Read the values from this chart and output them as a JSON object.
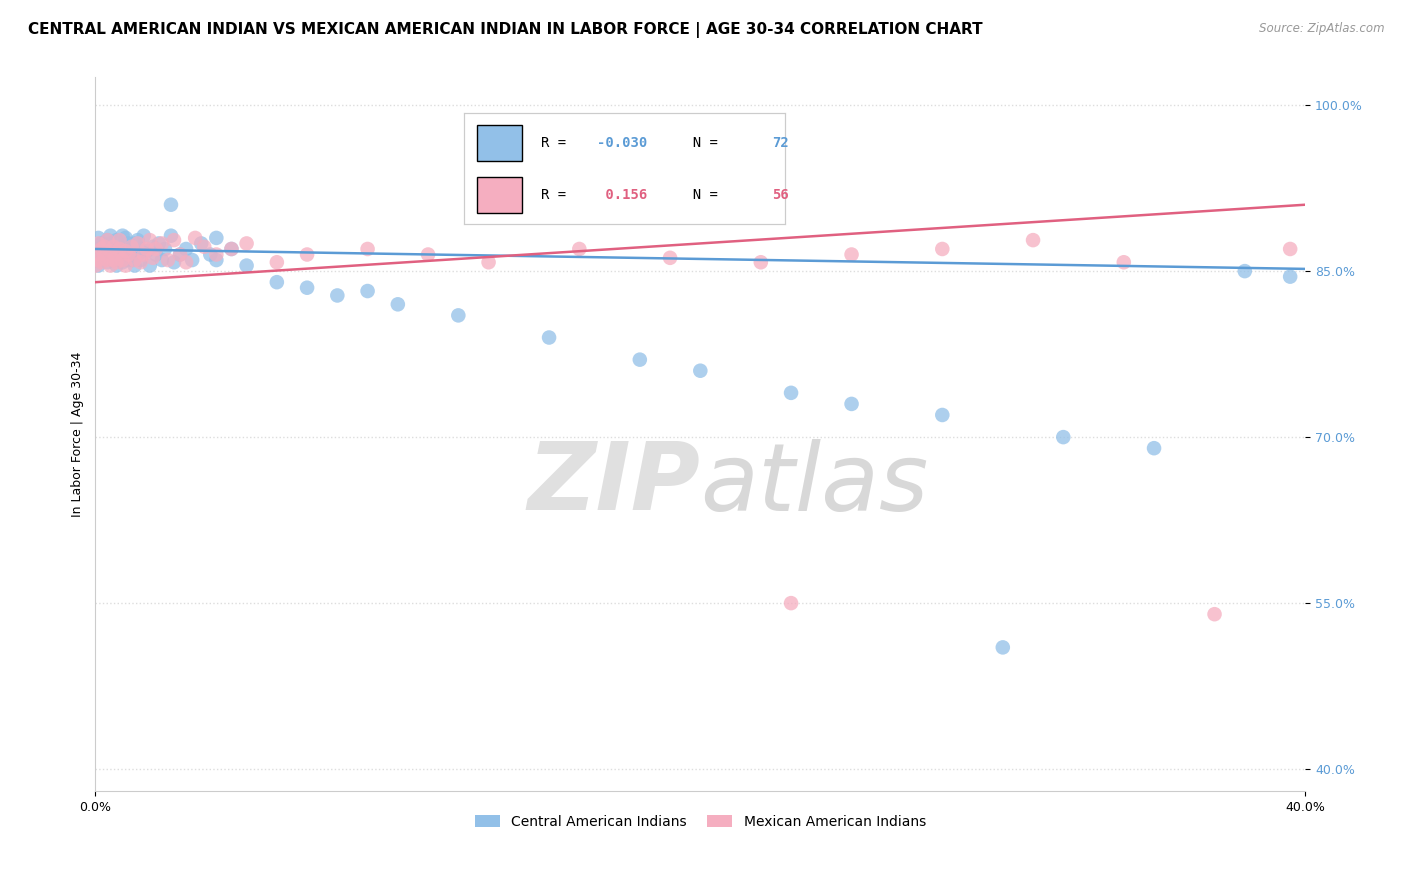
{
  "title": "CENTRAL AMERICAN INDIAN VS MEXICAN AMERICAN INDIAN IN LABOR FORCE | AGE 30-34 CORRELATION CHART",
  "source": "Source: ZipAtlas.com",
  "ylabel": "In Labor Force | Age 30-34",
  "xlim": [
    0.0,
    0.4
  ],
  "ylim": [
    0.38,
    1.025
  ],
  "yticks": [
    0.4,
    0.55,
    0.7,
    0.85,
    1.0
  ],
  "ytick_labels": [
    "40.0%",
    "55.0%",
    "70.0%",
    "85.0%",
    "100.0%"
  ],
  "xticks": [
    0.0,
    0.4
  ],
  "xtick_labels": [
    "0.0%",
    "40.0%"
  ],
  "blue_R": -0.03,
  "blue_N": 72,
  "pink_R": 0.156,
  "pink_N": 56,
  "blue_color": "#92c0e8",
  "pink_color": "#f5aec0",
  "blue_line_color": "#5b9bd5",
  "pink_line_color": "#e06080",
  "legend_blue": "Central American Indians",
  "legend_pink": "Mexican American Indians",
  "blue_scatter_x": [
    0.0,
    0.0,
    0.001,
    0.001,
    0.002,
    0.002,
    0.003,
    0.003,
    0.004,
    0.004,
    0.005,
    0.005,
    0.005,
    0.006,
    0.006,
    0.007,
    0.007,
    0.007,
    0.008,
    0.008,
    0.009,
    0.009,
    0.01,
    0.01,
    0.01,
    0.011,
    0.011,
    0.012,
    0.012,
    0.013,
    0.013,
    0.014,
    0.014,
    0.015,
    0.015,
    0.016,
    0.017,
    0.018,
    0.019,
    0.02,
    0.021,
    0.022,
    0.023,
    0.025,
    0.026,
    0.028,
    0.03,
    0.032,
    0.035,
    0.038,
    0.04,
    0.045,
    0.05,
    0.06,
    0.07,
    0.08,
    0.09,
    0.1,
    0.12,
    0.15,
    0.18,
    0.2,
    0.23,
    0.25,
    0.28,
    0.3,
    0.32,
    0.35,
    0.38,
    0.395,
    0.025,
    0.04
  ],
  "blue_scatter_y": [
    0.87,
    0.86,
    0.88,
    0.855,
    0.875,
    0.862,
    0.868,
    0.872,
    0.878,
    0.858,
    0.865,
    0.875,
    0.882,
    0.86,
    0.87,
    0.855,
    0.865,
    0.878,
    0.86,
    0.87,
    0.882,
    0.858,
    0.86,
    0.87,
    0.88,
    0.865,
    0.875,
    0.86,
    0.87,
    0.855,
    0.875,
    0.865,
    0.878,
    0.86,
    0.87,
    0.882,
    0.868,
    0.855,
    0.872,
    0.865,
    0.875,
    0.86,
    0.87,
    0.882,
    0.858,
    0.865,
    0.87,
    0.86,
    0.875,
    0.865,
    0.86,
    0.87,
    0.855,
    0.84,
    0.835,
    0.828,
    0.832,
    0.82,
    0.81,
    0.79,
    0.77,
    0.76,
    0.74,
    0.73,
    0.72,
    0.51,
    0.7,
    0.69,
    0.85,
    0.845,
    0.91,
    0.88
  ],
  "pink_scatter_x": [
    0.0,
    0.0,
    0.001,
    0.001,
    0.002,
    0.002,
    0.003,
    0.003,
    0.004,
    0.004,
    0.005,
    0.005,
    0.006,
    0.006,
    0.007,
    0.007,
    0.008,
    0.008,
    0.009,
    0.01,
    0.01,
    0.011,
    0.012,
    0.013,
    0.014,
    0.015,
    0.016,
    0.017,
    0.018,
    0.019,
    0.02,
    0.022,
    0.024,
    0.026,
    0.028,
    0.03,
    0.033,
    0.036,
    0.04,
    0.045,
    0.05,
    0.06,
    0.07,
    0.09,
    0.11,
    0.13,
    0.16,
    0.19,
    0.22,
    0.25,
    0.28,
    0.31,
    0.34,
    0.37,
    0.395,
    0.23
  ],
  "pink_scatter_y": [
    0.865,
    0.855,
    0.875,
    0.86,
    0.87,
    0.858,
    0.865,
    0.872,
    0.86,
    0.878,
    0.855,
    0.868,
    0.86,
    0.872,
    0.858,
    0.865,
    0.87,
    0.878,
    0.86,
    0.855,
    0.868,
    0.865,
    0.872,
    0.86,
    0.875,
    0.858,
    0.865,
    0.87,
    0.878,
    0.862,
    0.87,
    0.875,
    0.86,
    0.878,
    0.865,
    0.858,
    0.88,
    0.872,
    0.865,
    0.87,
    0.875,
    0.858,
    0.865,
    0.87,
    0.865,
    0.858,
    0.87,
    0.862,
    0.858,
    0.865,
    0.87,
    0.878,
    0.858,
    0.54,
    0.87,
    0.55
  ],
  "blue_line_x0": 0.0,
  "blue_line_x1": 0.4,
  "blue_line_y0": 0.87,
  "blue_line_y1": 0.852,
  "pink_line_x0": 0.0,
  "pink_line_x1": 0.4,
  "pink_line_y0": 0.84,
  "pink_line_y1": 0.91,
  "watermark_zip": "ZIP",
  "watermark_atlas": "atlas",
  "background_color": "#ffffff",
  "grid_color": "#dddddd",
  "title_fontsize": 11,
  "axis_fontsize": 9,
  "tick_fontsize": 9,
  "right_tick_color": "#5b9bd5"
}
